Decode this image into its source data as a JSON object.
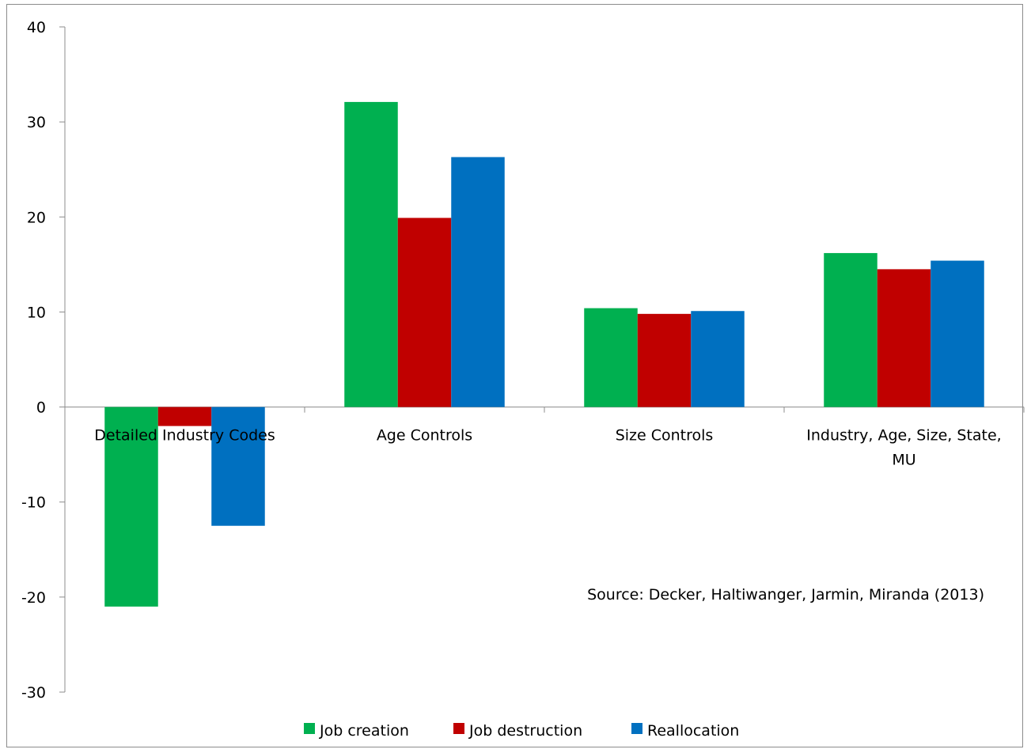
{
  "chart_data": {
    "type": "bar",
    "categories": [
      "Detailed Industry Codes",
      "Age Controls",
      "Size Controls",
      "Industry, Age, Size, State, MU"
    ],
    "series": [
      {
        "name": "Job creation",
        "color": "#00b050",
        "values": [
          -21,
          32.1,
          10.4,
          16.2
        ]
      },
      {
        "name": "Job destruction",
        "color": "#c00000",
        "values": [
          -2,
          19.9,
          9.8,
          14.5
        ]
      },
      {
        "name": "Reallocation",
        "color": "#0070c0",
        "values": [
          -12.5,
          26.3,
          10.1,
          15.4
        ]
      }
    ],
    "ylim": [
      -30,
      40
    ],
    "yticks": [
      40,
      30,
      20,
      10,
      0,
      -10,
      -20,
      -30
    ],
    "annotation": "Source: Decker, Haltiwanger, Jarmin, Miranda (2013)",
    "legend_position": "bottom",
    "grid": false
  }
}
